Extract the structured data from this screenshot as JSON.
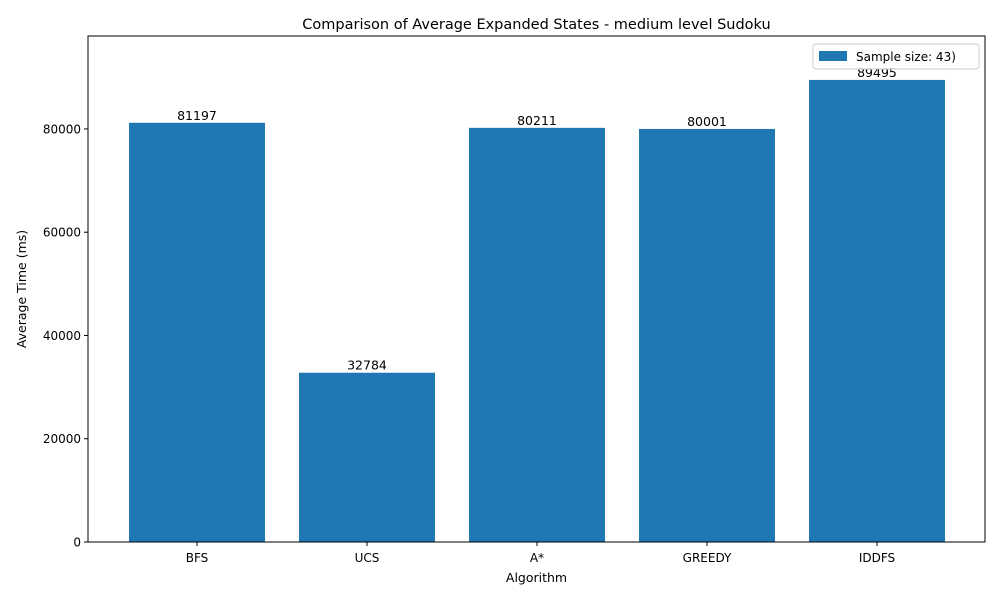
{
  "chart_data": {
    "type": "bar",
    "title": "Comparison of Average Expanded States - medium level Sudoku",
    "xlabel": "Algorithm",
    "ylabel": "Average Time (ms)",
    "categories": [
      "BFS",
      "UCS",
      "A*",
      "GREEDY",
      "IDDFS"
    ],
    "series": [
      {
        "name": "Sample size: 43)",
        "values": [
          81197,
          32784,
          80211,
          80001,
          89495
        ],
        "color": "#1f77b4"
      }
    ],
    "data_labels": [
      "81197",
      "32784",
      "80211",
      "80001",
      "89495"
    ],
    "yticks": [
      0,
      20000,
      40000,
      60000,
      80000
    ],
    "ytick_labels": [
      "0",
      "20000",
      "40000",
      "60000",
      "80000"
    ],
    "ylim": [
      0,
      98000
    ],
    "grid": false,
    "legend_position": "top-right"
  }
}
